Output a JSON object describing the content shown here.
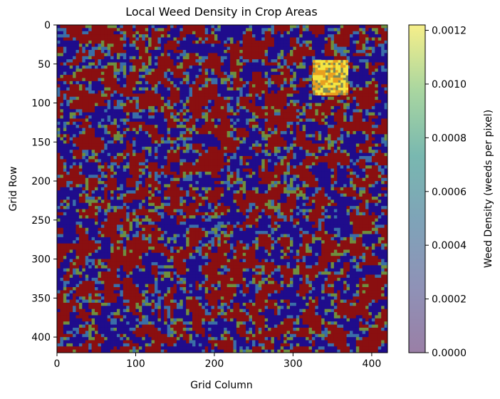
{
  "chart_data": {
    "type": "heatmap",
    "title": "Local Weed Density in Crop Areas",
    "xlabel": "Grid Column",
    "ylabel": "Grid Row",
    "xlim": [
      0,
      420
    ],
    "ylim": [
      420,
      0
    ],
    "x_ticks": [
      0,
      100,
      200,
      300,
      400
    ],
    "y_ticks": [
      0,
      50,
      100,
      150,
      200,
      250,
      300,
      350,
      400
    ],
    "colorbar": {
      "label": "Weed Density (weeds per pixel)",
      "min": 0.0,
      "max": 0.00122,
      "ticks": [
        "0.0000",
        "0.0002",
        "0.0004",
        "0.0006",
        "0.0008",
        "0.0010",
        "0.0012"
      ],
      "tick_values": [
        0.0,
        0.0002,
        0.0004,
        0.0006,
        0.0008,
        0.001,
        0.0012
      ]
    },
    "background_pattern": {
      "description_colors": [
        "#1a0a8c",
        "#8c1a0a",
        "#6b8a3a",
        "#3a8aa0"
      ],
      "low_color": "#1e0b8a",
      "high_color": "#8b0d0d"
    },
    "highlight_region": {
      "x_range": [
        325,
        370
      ],
      "y_range": [
        45,
        90
      ],
      "colors": [
        "#f5e642",
        "#e8a020",
        "#7a8a5a"
      ]
    },
    "grid": false
  }
}
